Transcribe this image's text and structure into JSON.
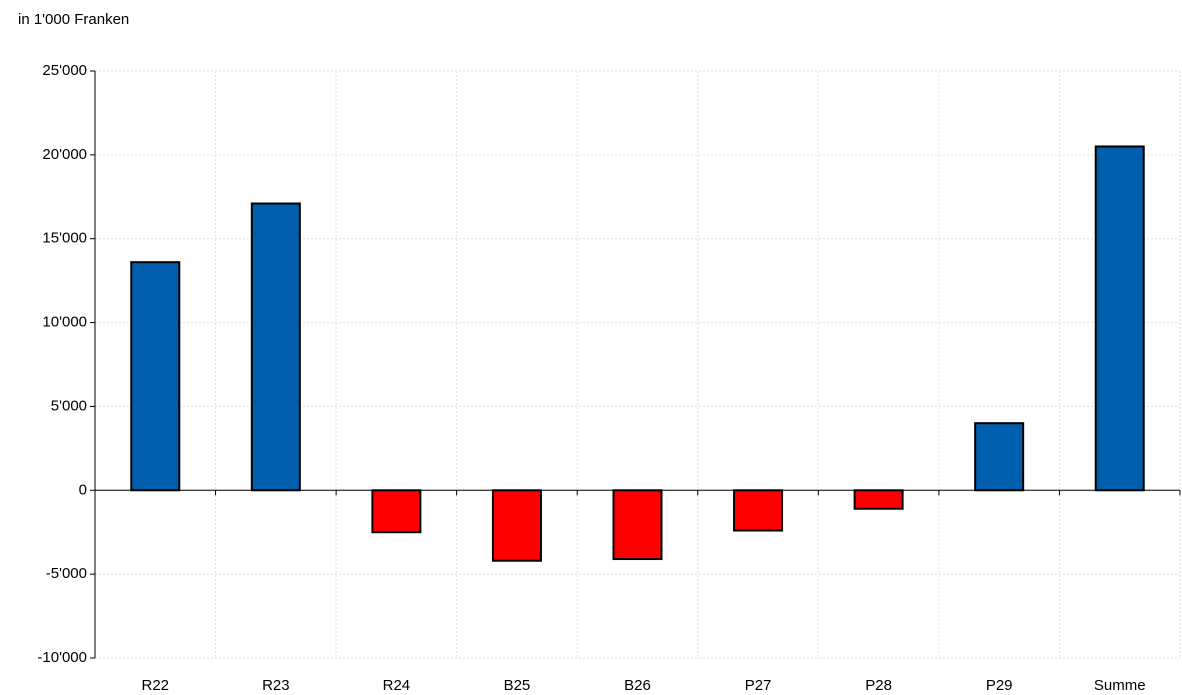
{
  "chart_data": {
    "type": "bar",
    "y_label": "in 1'000 Franken",
    "categories": [
      "R22",
      "R23",
      "R24",
      "B25",
      "B26",
      "P27",
      "P28",
      "P29",
      "Summe"
    ],
    "values": [
      13600,
      17100,
      -2500,
      -4200,
      -4100,
      -2400,
      -1100,
      4000,
      20500
    ],
    "positive_color": "#005ead",
    "negative_color": "#ff0000",
    "ylim": [
      -10000,
      25000
    ],
    "yticks": [
      {
        "value": -10000,
        "label": "-10'000"
      },
      {
        "value": -5000,
        "label": "-5'000"
      },
      0,
      {
        "value": 5000,
        "label": "5'000"
      },
      {
        "value": 10000,
        "label": "10'000"
      },
      {
        "value": 15000,
        "label": "15'000"
      },
      {
        "value": 20000,
        "label": "20'000"
      },
      {
        "value": 25000,
        "label": "25'000"
      }
    ],
    "grid": true
  }
}
